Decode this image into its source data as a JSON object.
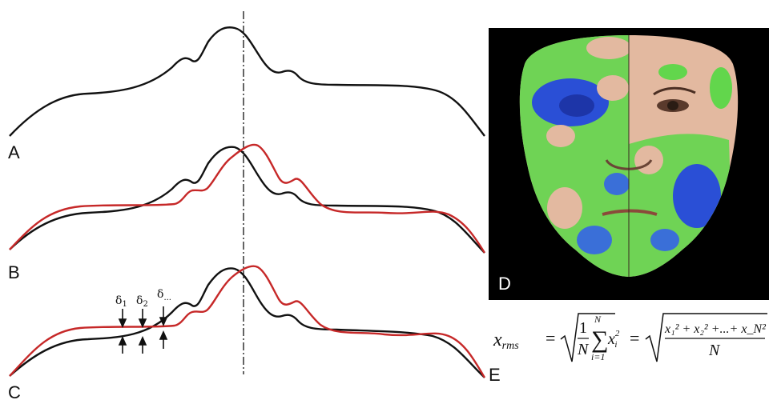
{
  "panels": {
    "a": {
      "label": "A"
    },
    "b": {
      "label": "B"
    },
    "c": {
      "label": "C"
    },
    "d": {
      "label": "D"
    },
    "e": {
      "label": "E"
    }
  },
  "deltas": [
    {
      "symbol": "δ",
      "sub": "1"
    },
    {
      "symbol": "δ",
      "sub": "2"
    },
    {
      "symbol": "δ",
      "sub": "..."
    }
  ],
  "colors": {
    "profile_reference": "#111111",
    "profile_shifted": "#c62828",
    "face_background": "#000000",
    "deviation_low": "#2a4fd6",
    "deviation_mid": "#5fd94a",
    "skin": "#e3b9a0"
  },
  "equation": {
    "lhs": "x",
    "lhs_sub": "rms",
    "frac1_num": "1",
    "frac1_den": "N",
    "sum_top": "N",
    "sum_bottom": "i=1",
    "term": "x",
    "term_sub": "i",
    "term_sup": "2",
    "rhs_num": "x₁² + x₂² +...+ x_N²",
    "rhs_den": "N"
  }
}
